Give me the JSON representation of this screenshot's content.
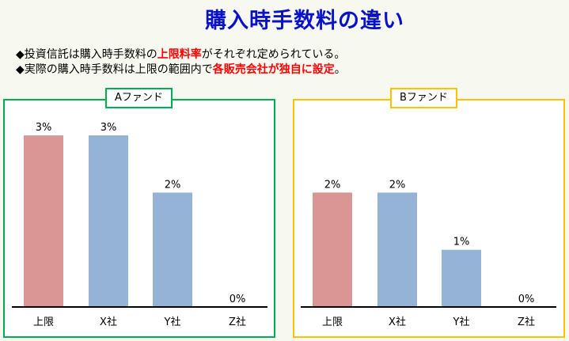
{
  "title": "購入時手数料の違い",
  "bullets": [
    {
      "pre": "◆投資信託は購入時手数料の",
      "hl": "上限料率",
      "post": "がそれぞれ定められている。"
    },
    {
      "pre": "◆実際の購入時手数料は上限の範囲内で",
      "hl": "各販売会社が独自に設定",
      "post": "。"
    }
  ],
  "colors": {
    "limit": "#d99694",
    "company": "#95b3d7",
    "panelA": "#00b050",
    "panelB": "#ffc000"
  },
  "chart_data": [
    {
      "type": "bar",
      "title": "Aファンド",
      "categories": [
        "上限",
        "X社",
        "Y社",
        "Z社"
      ],
      "values": [
        3,
        3,
        2,
        0
      ],
      "labels": [
        "3%",
        "3%",
        "2%",
        "0%"
      ],
      "unit": "%",
      "ylim": [
        0,
        3
      ]
    },
    {
      "type": "bar",
      "title": "Bファンド",
      "categories": [
        "上限",
        "X社",
        "Y社",
        "Z社"
      ],
      "values": [
        2,
        2,
        1,
        0
      ],
      "labels": [
        "2%",
        "2%",
        "1%",
        "0%"
      ],
      "unit": "%",
      "ylim": [
        0,
        3
      ]
    }
  ]
}
